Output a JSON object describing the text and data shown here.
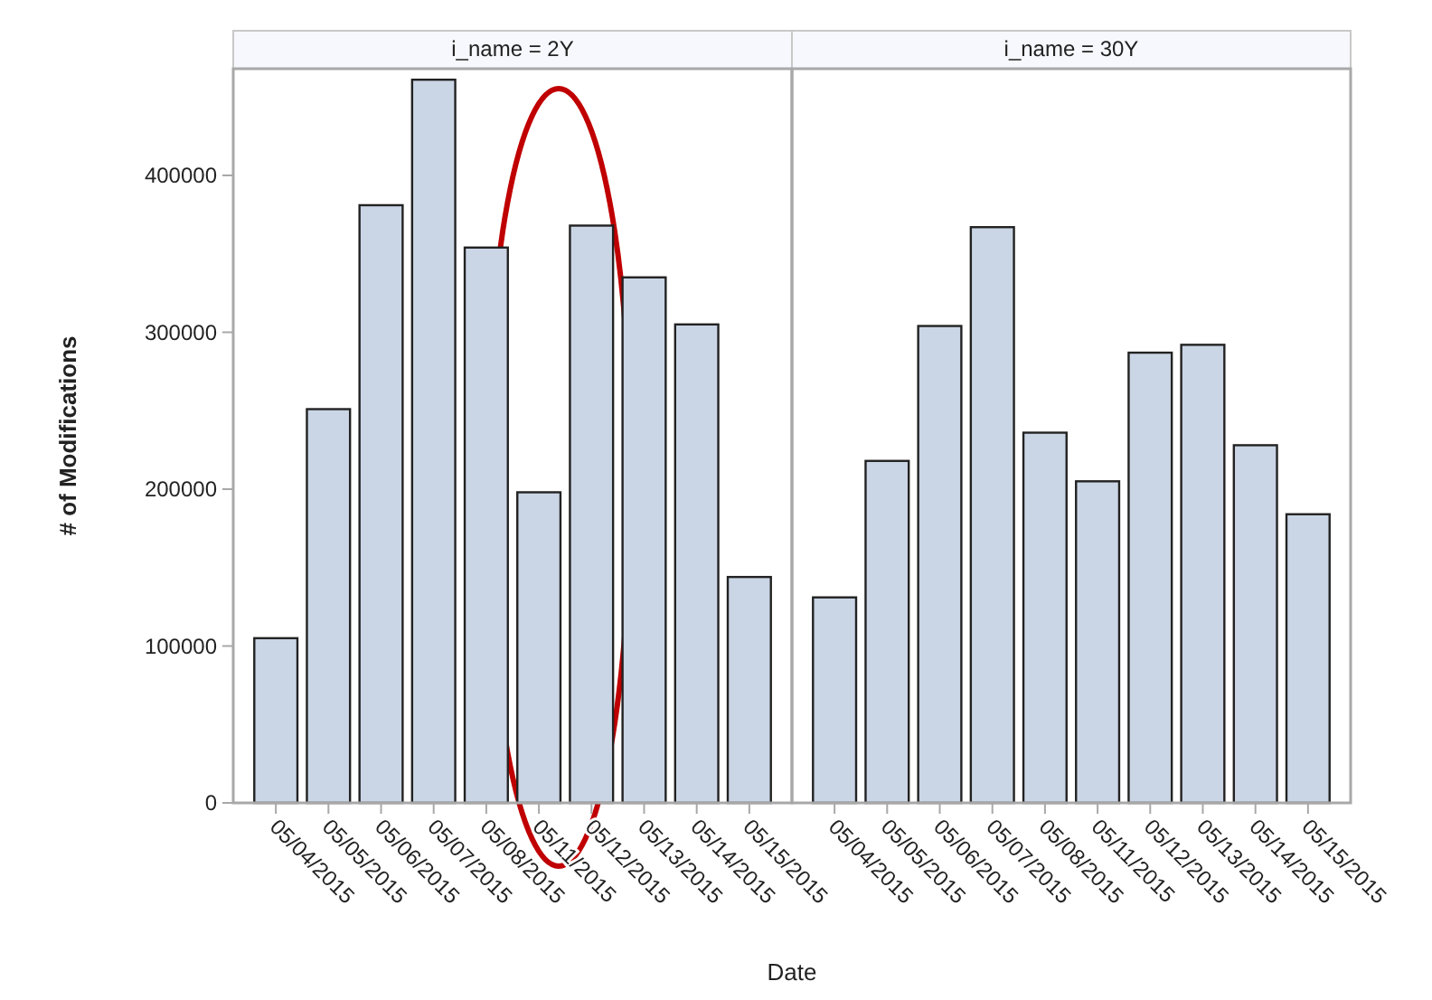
{
  "chart_data": [
    {
      "type": "bar",
      "title": "i_name = 2Y",
      "ylabel": "# of Modifications",
      "xlabel": "Date",
      "categories": [
        "05/04/2015",
        "05/05/2015",
        "05/06/2015",
        "05/07/2015",
        "05/08/2015",
        "05/11/2015",
        "05/12/2015",
        "05/13/2015",
        "05/14/2015",
        "05/15/2015"
      ],
      "values": [
        105000,
        251000,
        381000,
        461000,
        354000,
        198000,
        368000,
        335000,
        305000,
        144000
      ],
      "color": "#cad5e5",
      "ylim": [
        0,
        468000
      ],
      "yticks": [
        0,
        100000,
        200000,
        300000,
        400000
      ],
      "grid": false
    },
    {
      "type": "bar",
      "title": "i_name = 30Y",
      "categories": [
        "05/04/2015",
        "05/05/2015",
        "05/06/2015",
        "05/07/2015",
        "05/08/2015",
        "05/11/2015",
        "05/12/2015",
        "05/13/2015",
        "05/14/2015",
        "05/15/2015"
      ],
      "values": [
        131000,
        218000,
        304000,
        367000,
        236000,
        205000,
        287000,
        292000,
        228000,
        184000
      ],
      "color": "#cad5e5",
      "ylim": [
        0,
        468000
      ],
      "yticks": [
        0,
        100000,
        200000,
        300000,
        400000
      ],
      "tick_labels": "x",
      "grid": false
    }
  ]
}
